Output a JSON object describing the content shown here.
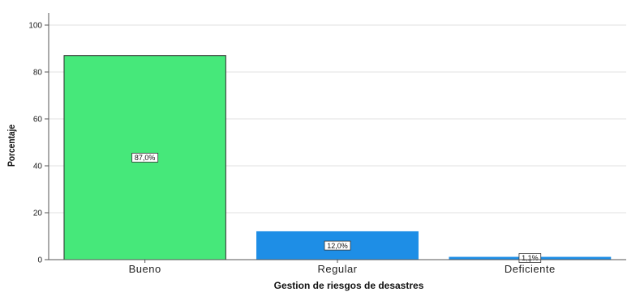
{
  "chart_data": {
    "type": "bar",
    "categories": [
      "Bueno",
      "Regular",
      "Deficiente"
    ],
    "values": [
      87.0,
      12.0,
      1.1
    ],
    "data_labels": [
      "87,0%",
      "12,0%",
      "1,1%"
    ],
    "bar_colors": [
      "#46e87a",
      "#1e8ee6",
      "#1e8ee6"
    ],
    "xlabel": "Gestion de riesgos de desastres",
    "ylabel": "Porcentaje",
    "ylim": [
      0,
      100
    ],
    "yticks": [
      0,
      20,
      40,
      60,
      80,
      100
    ],
    "grid": true,
    "legend": "none"
  }
}
